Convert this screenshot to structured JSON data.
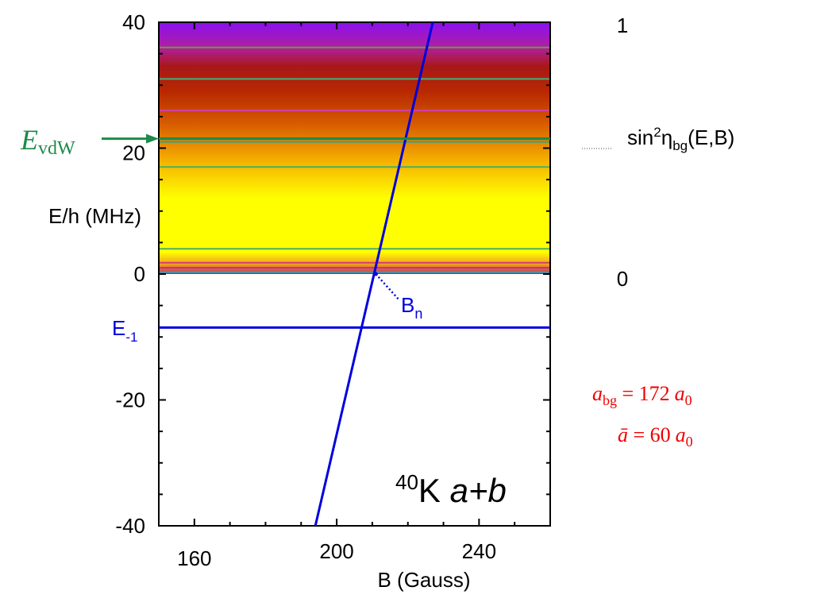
{
  "chart_data": {
    "type": "line",
    "xlabel": "B (Gauss)",
    "ylabel": "E/h (MHz)",
    "xlim": [
      150,
      260
    ],
    "ylim": [
      -40,
      40
    ],
    "x_ticks": [
      {
        "value": 160,
        "label": "160"
      },
      {
        "value": 200,
        "label": "200"
      },
      {
        "value": 240,
        "label": "240"
      }
    ],
    "y_ticks": [
      {
        "value": 40,
        "label": "40"
      },
      {
        "value": 20,
        "label": "20"
      },
      {
        "value": 0,
        "label": "0"
      },
      {
        "value": -20,
        "label": "-20"
      },
      {
        "value": -40,
        "label": "-40"
      }
    ],
    "colorbar": {
      "label_base": "sin",
      "label_sup": "2",
      "label_eta": "η",
      "label_sub": "bg",
      "label_args": "(E,B)",
      "max_label": "1",
      "min_label": "0",
      "range_mhz": [
        0,
        40
      ],
      "gradient_stops": [
        {
          "e": 0.0,
          "color": "#7a2f8f"
        },
        {
          "e": 0.5,
          "color": "#d0504a"
        },
        {
          "e": 1.5,
          "color": "#f29a22"
        },
        {
          "e": 3.5,
          "color": "#ffff00"
        },
        {
          "e": 12.0,
          "color": "#ffff00"
        },
        {
          "e": 18.0,
          "color": "#f6b000"
        },
        {
          "e": 24.0,
          "color": "#d55a00"
        },
        {
          "e": 29.0,
          "color": "#b82800"
        },
        {
          "e": 33.0,
          "color": "#a81818"
        },
        {
          "e": 36.0,
          "color": "#b01fa0"
        },
        {
          "e": 40.0,
          "color": "#8a10f0"
        }
      ],
      "band_lines": [
        {
          "e": 0.3,
          "color": "#3aa0b0"
        },
        {
          "e": 1.0,
          "color": "#c03080"
        },
        {
          "e": 1.8,
          "color": "#d04070"
        },
        {
          "e": 4.0,
          "color": "#4ab060"
        },
        {
          "e": 17.0,
          "color": "#4ab060"
        },
        {
          "e": 21.0,
          "color": "#3aa080"
        },
        {
          "e": 21.6,
          "color": "#2a9060"
        },
        {
          "e": 26.0,
          "color": "#d040a0"
        },
        {
          "e": 31.0,
          "color": "#40b080"
        },
        {
          "e": 36.0,
          "color": "#60a040"
        }
      ]
    },
    "series": [
      {
        "name": "B_n",
        "color": "#0000dd",
        "points": [
          {
            "x": 194,
            "y": -40
          },
          {
            "x": 227,
            "y": 40
          }
        ]
      },
      {
        "name": "E_-1",
        "color": "#0000dd",
        "points": [
          {
            "x": 150,
            "y": -8.5
          },
          {
            "x": 260,
            "y": -8.5
          }
        ]
      },
      {
        "name": "E_vdW",
        "color": "#1e8a4a",
        "points": [
          {
            "x": 150,
            "y": 21.5
          },
          {
            "x": 260,
            "y": 21.5
          }
        ]
      }
    ],
    "annotations": {
      "evdw_main": "E",
      "evdw_sub": "vdW",
      "evdw_color": "#1e8a4a",
      "bn_main": "B",
      "bn_sub": "n",
      "bn_point": {
        "x": 211,
        "y": 0
      },
      "e1_main": "E",
      "e1_sub": "-1",
      "annot_color": "#0000dd",
      "system_sup": "40",
      "system_main": "K ",
      "system_italic": "a+b",
      "abg_a": "a",
      "abg_sub": "bg",
      "abg_eq": " = 172",
      "abg_unit": "a",
      "abg_unit_sub": "0",
      "abar_a": "ā",
      "abar_eq": " = 60",
      "abar_unit": "a",
      "abar_unit_sub": "0",
      "param_color": "#ee0000"
    }
  }
}
